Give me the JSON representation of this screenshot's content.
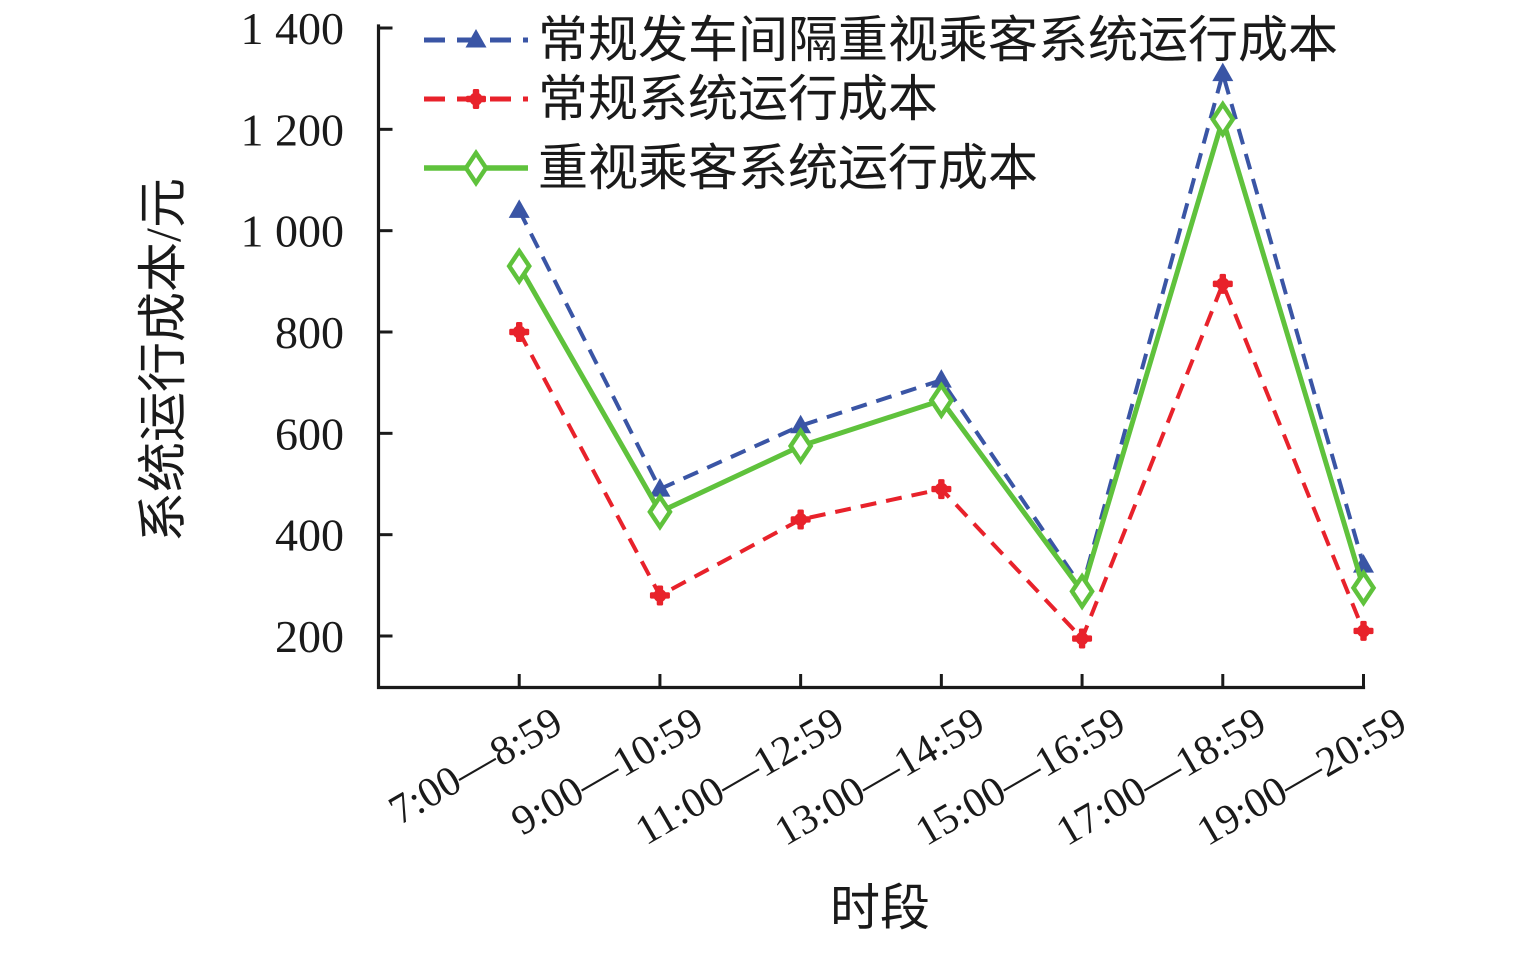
{
  "figure": {
    "background": "#ffffff",
    "text_color": "#1a1a1a"
  },
  "chart_data": {
    "type": "line",
    "title": "",
    "xlabel": "时段",
    "ylabel": "系统运行成本/元",
    "categories": [
      "7:00—8:59",
      "9:00—10:59",
      "11:00—12:59",
      "13:00—14:59",
      "15:00—16:59",
      "17:00—18:59",
      "19:00—20:59"
    ],
    "series": [
      {
        "name": "常规发车间隔重视乘客系统运行成本",
        "color": "#3A55A5",
        "line_style": "dashed",
        "marker": "filled-triangle",
        "values": [
          1040,
          490,
          615,
          705,
          295,
          1310,
          340
        ]
      },
      {
        "name": "常规系统运行成本",
        "color": "#E8222B",
        "line_style": "dashed",
        "marker": "filled-plus-circle",
        "values": [
          800,
          280,
          430,
          490,
          195,
          895,
          210
        ]
      },
      {
        "name": "重视乘客系统运行成本",
        "color": "#5FC23C",
        "line_style": "solid",
        "marker": "open-diamond",
        "values": [
          930,
          445,
          575,
          665,
          288,
          1220,
          295
        ]
      }
    ],
    "yticks": {
      "values": [
        200,
        400,
        600,
        800,
        1000,
        1200,
        1400
      ],
      "labels": [
        "200",
        "400",
        "600",
        "800",
        "1 000",
        "1 200",
        "1 400"
      ]
    },
    "ylim": [
      100,
      1400
    ],
    "grid": false,
    "legend_position": "top-left-inside",
    "axis_color": "#1a1a1a"
  }
}
